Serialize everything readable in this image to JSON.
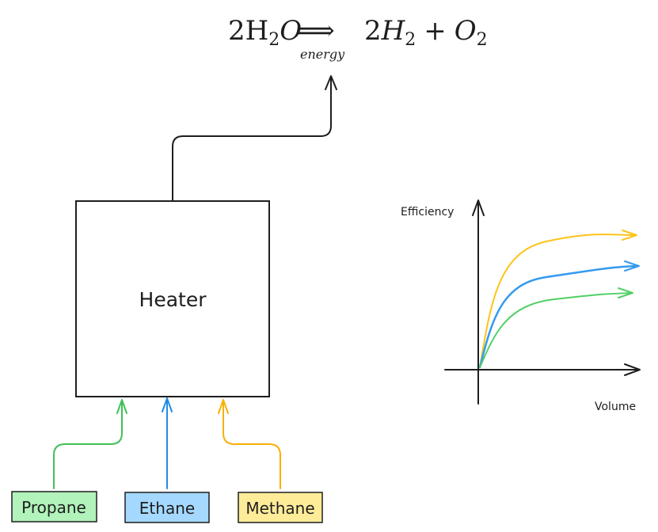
{
  "equation": {
    "lhs_coef": "2H",
    "lhs_sub": "2",
    "lhs_o": "O",
    "arrow": "⟹",
    "arrow_label": "energy",
    "rhs_coef": "2",
    "rhs_h": "H",
    "rhs_h_sub": "2",
    "plus": "+",
    "rhs_o": "O",
    "rhs_o_sub": "2"
  },
  "heater": {
    "label": "Heater"
  },
  "fuels": [
    {
      "label": "Propane",
      "fill": "#b2f2bb",
      "stroke": "#2f9e44",
      "line": "#40c057"
    },
    {
      "label": "Ethane",
      "fill": "#a5d8ff",
      "stroke": "#1971c2",
      "line": "#228be6"
    },
    {
      "label": "Methane",
      "fill": "#ffec99",
      "stroke": "#f08c00",
      "line": "#fab005"
    }
  ],
  "chart": {
    "ylabel": "Efficiency",
    "xlabel": "Volume",
    "curve_colors": [
      "#fcc419",
      "#339af0",
      "#51cf66"
    ]
  }
}
